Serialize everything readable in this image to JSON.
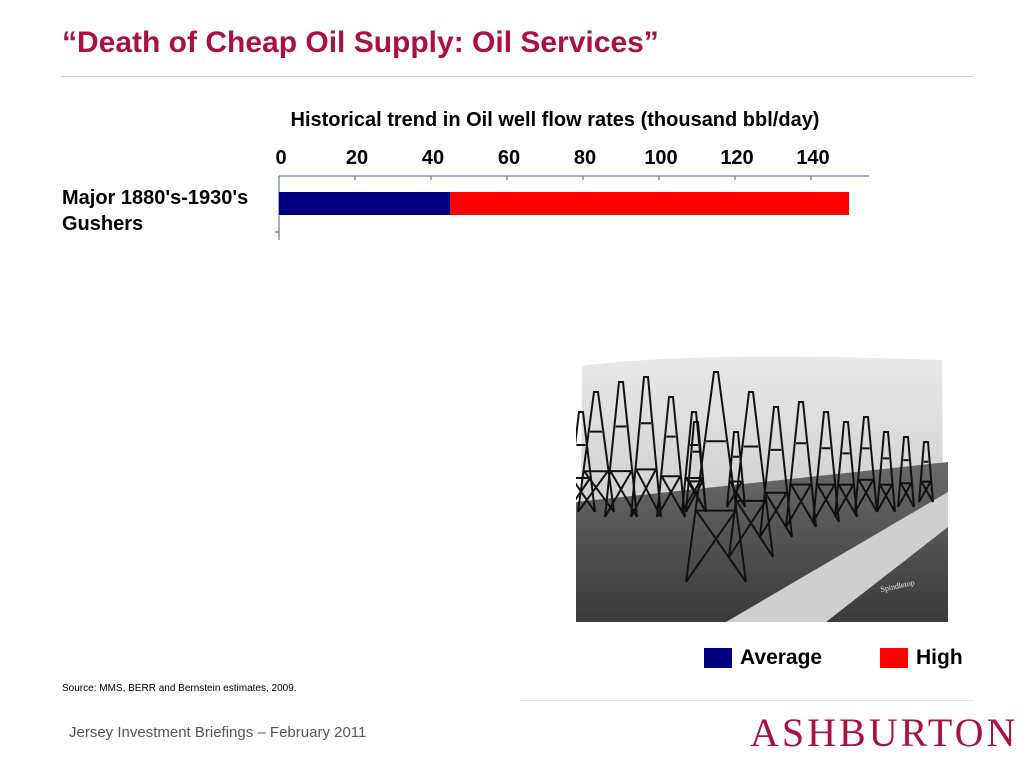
{
  "slide": {
    "title": "“Death of Cheap Oil Supply: Oil Services”",
    "source": "Source: MMS, BERR and Bernstein estimates, 2009.",
    "footer": "Jersey Investment Briefings – February 2011",
    "logo": "ASHBURTON"
  },
  "colors": {
    "title": "#a8123e",
    "average": "#000080",
    "high": "#ff0000",
    "logo": "#a8123e"
  },
  "photo": {
    "icon": "oil-derricks-photo",
    "caption": "Spindletop"
  },
  "chart_data": {
    "type": "bar",
    "stacked": true,
    "orientation": "horizontal",
    "title": "Historical trend in Oil well flow rates (thousand bbl/day)",
    "categories": [
      "Major 1880's-1930's Gushers"
    ],
    "category_lines": [
      "Major 1880's-1930's",
      "Gushers"
    ],
    "series": [
      {
        "name": "Average",
        "values": [
          45
        ],
        "color": "#000080"
      },
      {
        "name": "High",
        "values": [
          105
        ],
        "color": "#ff0000"
      }
    ],
    "xlim": [
      0,
      150
    ],
    "ticks": [
      0,
      20,
      40,
      60,
      80,
      100,
      120,
      140
    ],
    "tick_labels": [
      "0",
      "20",
      "40",
      "60",
      "80",
      "100",
      "120",
      "140"
    ],
    "legend": {
      "position": "bottom-right",
      "entries": [
        "Average",
        "High"
      ]
    },
    "grid": false
  }
}
